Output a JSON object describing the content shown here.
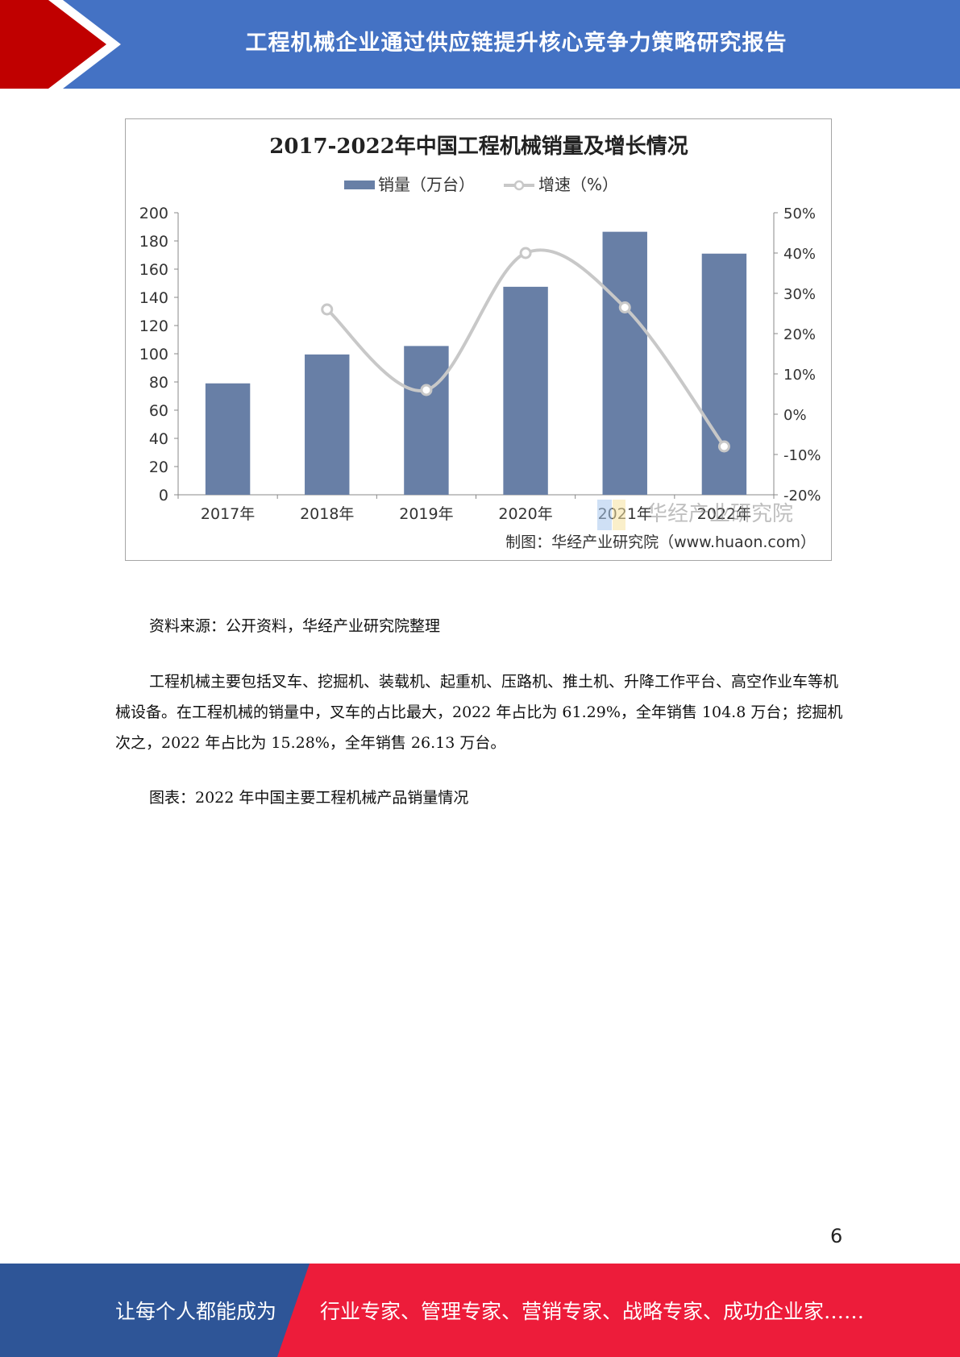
{
  "header": {
    "title": "工程机械企业通过供应链提升核心竞争力策略研究报告",
    "colors": {
      "blue": "#4472c4",
      "red": "#c00000"
    }
  },
  "chart_data": {
    "type": "bar",
    "title": "2017-2022年中国工程机械销量及增长情况",
    "categories": [
      "2017年",
      "2018年",
      "2019年",
      "2020年",
      "2021年",
      "2022年"
    ],
    "series": [
      {
        "name": "销量（万台）",
        "type": "bar",
        "axis": "left",
        "color": "#687fa6",
        "values": [
          79,
          99.5,
          105.5,
          147.5,
          186.5,
          171
        ]
      },
      {
        "name": "增速（%）",
        "type": "line",
        "axis": "right",
        "color": "#c8c8c8",
        "values": [
          null,
          26,
          6,
          40,
          26.5,
          -8
        ]
      }
    ],
    "y_left": {
      "min": 0,
      "max": 200,
      "ticks": [
        "0",
        "20",
        "40",
        "60",
        "80",
        "100",
        "120",
        "140",
        "160",
        "180",
        "200"
      ]
    },
    "y_right": {
      "min": -20,
      "max": 50,
      "ticks": [
        "-20%",
        "-10%",
        "0%",
        "10%",
        "20%",
        "30%",
        "40%",
        "50%"
      ]
    },
    "legend_position": "top-center",
    "credit": "制图：华经产业研究院（www.huaon.com）",
    "watermark": "华经产业研究院"
  },
  "body": {
    "source": "资料来源：公开资料，华经产业研究院整理",
    "paragraph": "工程机械主要包括叉车、挖掘机、装载机、起重机、压路机、推土机、升降工作平台、高空作业车等机械设备。在工程机械的销量中，叉车的占比最大，2022 年占比为 61.29%，全年销售 104.8 万台；挖掘机次之，2022 年占比为 15.28%，全年销售 26.13 万台。",
    "caption": "图表：2022 年中国主要工程机械产品销量情况"
  },
  "page_number": "6",
  "footer": {
    "left_text": "让每个人都能成为",
    "right_text": "行业专家、管理专家、营销专家、战略专家、成功企业家……",
    "colors": {
      "blue": "#2e5597",
      "red": "#ed1c3a"
    }
  }
}
